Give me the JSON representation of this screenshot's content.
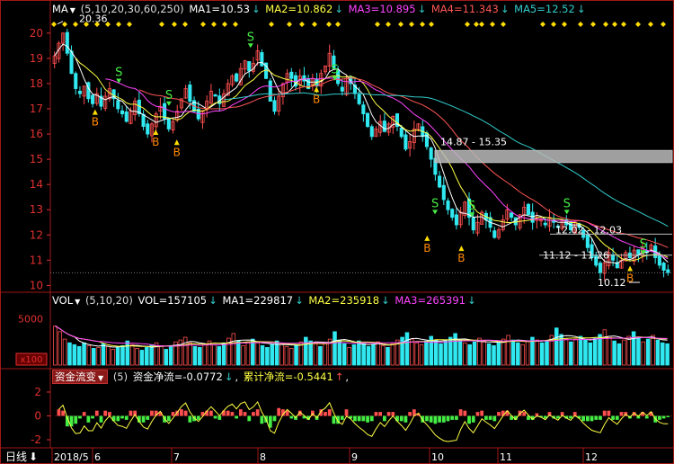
{
  "colors": {
    "bg": "#000000",
    "frame": "#a01818",
    "axis_text": "#e03030",
    "grid": "#5a1010",
    "up": "#ff4f4f",
    "down": "#30e8f0",
    "ma1": "#ffffff",
    "ma2": "#ffff44",
    "ma3": "#ff44ff",
    "ma4": "#ff5555",
    "ma5": "#33cccc",
    "signal": "#ffdd00",
    "sell": "#44ee44",
    "buy": "#ff8800",
    "band": "#bbbbbb",
    "white_label": "#ffffff"
  },
  "main_header": {
    "name": "MA",
    "params": "(5,10,20,30,60,250)",
    "ma1": "MA1=10.53",
    "ma2": "MA2=10.862",
    "ma3": "MA3=10.895",
    "ma4": "MA4=11.343",
    "ma5": "MA5=12.52",
    "arrow": "↓"
  },
  "vol_header": {
    "name": "VOL",
    "params": "(5,10,20)",
    "vol": "VOL=157105",
    "ma1": "MA1=229817",
    "ma2": "MA2=235918",
    "ma3": "MA3=265391",
    "arrow": "↓"
  },
  "mf_header": {
    "name": "资金流变",
    "params": "(5)",
    "net": "资金净流=-0.0772",
    "cum": "累计净流=-0.5441",
    "arrow_down": "↓",
    "arrow_up": "↑",
    "tail": ","
  },
  "price_annotations": {
    "high_label": "20.36",
    "low_label": "10.12",
    "band1": "14.87 - 15.35",
    "band2": "12.02 - 12.03",
    "band3": "11.12 - 11.26",
    "sell_mark": "S",
    "buy_mark": "B"
  },
  "bottom_bar": {
    "period": "日线",
    "period_arrow": "⬇",
    "months": [
      "2018/5",
      "6",
      "7",
      "8",
      "9",
      "10",
      "11",
      "12"
    ]
  },
  "y_axes": {
    "price_ticks": [
      "20",
      "19",
      "18",
      "17",
      "16",
      "15",
      "14",
      "13",
      "12",
      "11",
      "10"
    ],
    "vol_ticks": [
      "5000"
    ],
    "vol_unit": "x100",
    "mf_ticks": [
      "2",
      "0",
      "-2"
    ]
  },
  "chart_data": [
    {
      "type": "candlestick",
      "title": "MA",
      "ylim": [
        9.8,
        20.6
      ],
      "y_ticks": [
        10,
        11,
        12,
        13,
        14,
        15,
        16,
        17,
        18,
        19,
        20
      ],
      "x_month_labels": [
        "2018/5",
        "6",
        "7",
        "8",
        "9",
        "10",
        "11",
        "12"
      ],
      "highest": 20.36,
      "lowest": 10.12,
      "bands": [
        {
          "label": "14.87 - 15.35",
          "low": 14.87,
          "high": 15.35
        },
        {
          "label": "12.02 - 12.03",
          "low": 12.02,
          "high": 12.03
        },
        {
          "label": "11.12 - 11.26",
          "low": 11.12,
          "high": 11.26
        }
      ],
      "close_path": [
        19.1,
        19.6,
        20.0,
        19.2,
        18.4,
        17.8,
        17.6,
        17.9,
        17.4,
        17.2,
        17.6,
        17.1,
        17.5,
        17.8,
        17.4,
        17.0,
        16.8,
        16.5,
        16.9,
        17.3,
        16.8,
        16.3,
        16.0,
        16.4,
        16.8,
        17.1,
        16.6,
        16.2,
        16.5,
        16.9,
        17.4,
        17.8,
        17.3,
        16.9,
        16.6,
        16.9,
        17.3,
        17.7,
        17.5,
        17.2,
        17.6,
        18.0,
        18.3,
        18.1,
        18.6,
        18.9,
        18.5,
        18.8,
        19.3,
        18.7,
        18.2,
        17.3,
        16.9,
        17.5,
        18.0,
        18.4,
        18.2,
        17.9,
        18.3,
        18.1,
        17.8,
        18.2,
        17.9,
        18.4,
        18.7,
        19.2,
        18.6,
        18.0,
        17.7,
        18.2,
        18.0,
        17.6,
        17.2,
        16.8,
        16.3,
        15.9,
        16.2,
        16.5,
        16.1,
        16.4,
        16.7,
        16.3,
        15.9,
        15.4,
        15.7,
        16.2,
        16.4,
        15.9,
        15.5,
        15.0,
        14.4,
        13.9,
        13.4,
        13.0,
        12.7,
        12.4,
        12.9,
        13.3,
        12.7,
        12.2,
        12.5,
        12.9,
        12.6,
        12.3,
        11.9,
        12.2,
        12.6,
        13.0,
        12.7,
        12.4,
        12.8,
        13.1,
        12.8,
        12.5,
        12.7,
        12.6,
        12.4,
        12.7,
        12.5,
        12.3,
        12.6,
        12.4,
        12.2,
        12.5,
        12.3,
        11.9,
        11.5,
        11.1,
        10.8,
        10.5,
        10.9,
        11.3,
        11.0,
        10.7,
        11.0,
        11.3,
        11.1,
        11.4,
        11.2,
        11.5,
        11.3,
        11.6,
        11.1,
        10.8,
        10.6,
        10.5
      ],
      "signals": [
        {
          "type": "S",
          "index": 26,
          "price": 18.3
        },
        {
          "type": "B",
          "index": 17,
          "price": 16.8
        },
        {
          "type": "S",
          "index": 45,
          "price": 17.4
        },
        {
          "type": "B",
          "index": 40,
          "price": 16.0
        },
        {
          "type": "B",
          "index": 48,
          "price": 15.6
        },
        {
          "type": "S",
          "index": 76,
          "price": 19.7
        },
        {
          "type": "B",
          "index": 101,
          "price": 17.7
        },
        {
          "type": "S",
          "index": 108,
          "price": 18.4
        },
        {
          "type": "S",
          "index": 146,
          "price": 13.1
        },
        {
          "type": "B",
          "index": 143,
          "price": 11.8
        },
        {
          "type": "S",
          "index": 160,
          "price": 13.0
        },
        {
          "type": "B",
          "index": 156,
          "price": 11.4
        },
        {
          "type": "S",
          "index": 196,
          "price": 13.1
        },
        {
          "type": "S",
          "index": 225,
          "price": 11.5
        },
        {
          "type": "B",
          "index": 220,
          "price": 10.6
        }
      ]
    },
    {
      "type": "bar",
      "title": "VOL",
      "unit": "x100",
      "y_ticks": [
        5000
      ],
      "ylim": [
        0,
        6200
      ],
      "volume_path": [
        4200,
        3600,
        2800,
        2400,
        2200,
        2000,
        2400,
        2100,
        1800,
        1900,
        2300,
        2000,
        1700,
        1900,
        2100,
        2600,
        2200,
        1800,
        1600,
        1900,
        2200,
        2400,
        2000,
        1700,
        2100,
        2500,
        2700,
        3000,
        2400,
        2000,
        1900,
        2300,
        2600,
        2200,
        2000,
        2400,
        2900,
        3400,
        2600,
        2100,
        2500,
        2800,
        2400,
        2100,
        1900,
        2200,
        2600,
        2300,
        2000,
        1800,
        2100,
        2500,
        3000,
        2600,
        2300,
        2000,
        2400,
        2800,
        3600,
        2700,
        2300,
        1900,
        2200,
        2600,
        2300,
        2000,
        2200,
        2500,
        2100,
        1900,
        2300,
        2700,
        3000,
        3500,
        2800,
        2400,
        2200,
        2600,
        3100,
        2700,
        2300,
        2600,
        3000,
        3400,
        2700,
        2400,
        2200,
        2500,
        2900,
        2600,
        2300,
        2100,
        2400,
        2800,
        3200,
        2700,
        2400,
        2200,
        2600,
        3000,
        2700,
        2400,
        2600,
        3200,
        4000,
        3300,
        2800,
        2500,
        2800,
        3100,
        2700,
        2400,
        2900,
        3300,
        3800,
        3100,
        2600,
        2300,
        2700,
        3100,
        3600,
        3000,
        2500,
        2800,
        3200,
        2700,
        2400,
        2300
      ]
    },
    {
      "type": "bar",
      "title": "资金流变",
      "y_ticks": [
        2,
        0,
        -2
      ],
      "ylim": [
        -2.6,
        2.6
      ],
      "net_flow": -0.0772,
      "cumulative_flow": -0.5441
    }
  ]
}
